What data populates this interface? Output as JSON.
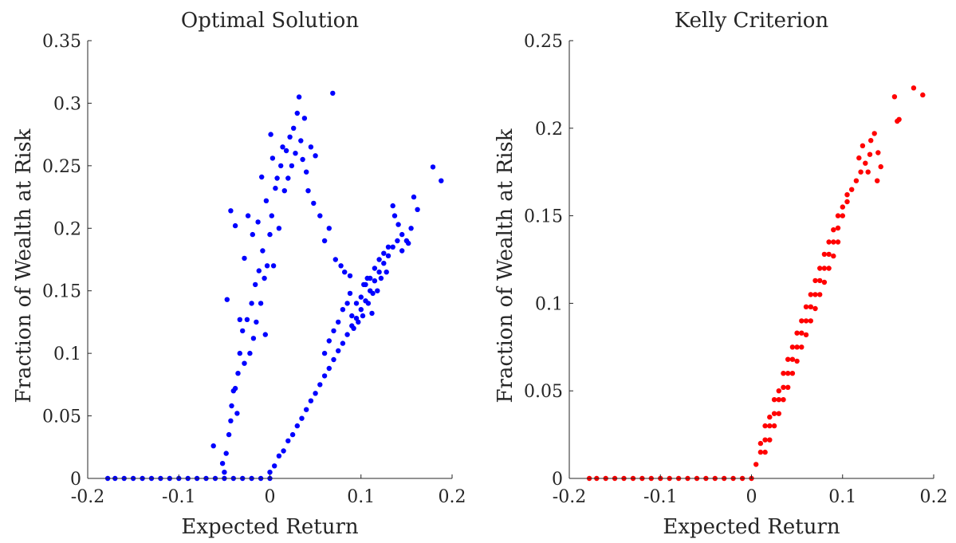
{
  "chart_data": [
    {
      "type": "scatter",
      "title": "Optimal Solution",
      "xlabel": "Expected Return",
      "ylabel": "Fraction of Wealth at Risk",
      "xlim": [
        -0.2,
        0.2
      ],
      "ylim": [
        0,
        0.35
      ],
      "xticks": [
        "-0.2",
        "-0.1",
        "0",
        "0.1",
        "0.2"
      ],
      "xtick_values": [
        -0.2,
        -0.1,
        0,
        0.1,
        0.2
      ],
      "yticks": [
        "0",
        "0.05",
        "0.1",
        "0.15",
        "0.2",
        "0.25",
        "0.3",
        "0.35"
      ],
      "ytick_values": [
        0,
        0.05,
        0.1,
        0.15,
        0.2,
        0.25,
        0.3,
        0.35
      ],
      "grid": false,
      "series": [
        {
          "color": "#0000ff",
          "points": [
            [
              -0.178,
              0
            ],
            [
              -0.17,
              0
            ],
            [
              -0.16,
              0
            ],
            [
              -0.15,
              0
            ],
            [
              -0.14,
              0
            ],
            [
              -0.13,
              0
            ],
            [
              -0.12,
              0
            ],
            [
              -0.11,
              0
            ],
            [
              -0.1,
              0
            ],
            [
              -0.09,
              0
            ],
            [
              -0.08,
              0
            ],
            [
              -0.07,
              0
            ],
            [
              -0.06,
              0
            ],
            [
              -0.05,
              0
            ],
            [
              -0.04,
              0
            ],
            [
              -0.03,
              0
            ],
            [
              -0.02,
              0
            ],
            [
              -0.01,
              0
            ],
            [
              0,
              0
            ],
            [
              -0.062,
              0.026
            ],
            [
              -0.052,
              0.012
            ],
            [
              -0.05,
              0.005
            ],
            [
              -0.048,
              0.02
            ],
            [
              -0.045,
              0.035
            ],
            [
              -0.043,
              0.046
            ],
            [
              -0.042,
              0.058
            ],
            [
              -0.04,
              0.07
            ],
            [
              -0.038,
              0.072
            ],
            [
              -0.036,
              0.052
            ],
            [
              -0.035,
              0.084
            ],
            [
              -0.033,
              0.1
            ],
            [
              -0.03,
              0.118
            ],
            [
              -0.028,
              0.092
            ],
            [
              -0.025,
              0.127
            ],
            [
              -0.022,
              0.1
            ],
            [
              -0.02,
              0.14
            ],
            [
              -0.018,
              0.112
            ],
            [
              -0.016,
              0.155
            ],
            [
              -0.015,
              0.125
            ],
            [
              -0.012,
              0.166
            ],
            [
              -0.01,
              0.14
            ],
            [
              -0.008,
              0.182
            ],
            [
              -0.006,
              0.16
            ],
            [
              -0.005,
              0.115
            ],
            [
              -0.003,
              0.17
            ],
            [
              0,
              0.195
            ],
            [
              0.002,
              0.21
            ],
            [
              0.004,
              0.17
            ],
            [
              0.006,
              0.232
            ],
            [
              0.008,
              0.24
            ],
            [
              0.01,
              0.2
            ],
            [
              0.012,
              0.25
            ],
            [
              0.014,
              0.265
            ],
            [
              0.016,
              0.23
            ],
            [
              0.018,
              0.262
            ],
            [
              0.02,
              0.24
            ],
            [
              0.022,
              0.273
            ],
            [
              0.024,
              0.25
            ],
            [
              0.026,
              0.28
            ],
            [
              0.028,
              0.26
            ],
            [
              0.03,
              0.292
            ],
            [
              0.032,
              0.305
            ],
            [
              0.034,
              0.27
            ],
            [
              0.036,
              0.255
            ],
            [
              0.038,
              0.288
            ],
            [
              0.04,
              0.245
            ],
            [
              0.042,
              0.23
            ],
            [
              0.045,
              0.265
            ],
            [
              0.048,
              0.22
            ],
            [
              0.05,
              0.258
            ],
            [
              0.055,
              0.21
            ],
            [
              0.06,
              0.19
            ],
            [
              0.065,
              0.2
            ],
            [
              0.069,
              0.308
            ],
            [
              0.072,
              0.175
            ],
            [
              0.078,
              0.17
            ],
            [
              0.082,
              0.165
            ],
            [
              0.088,
              0.162
            ],
            [
              -0.047,
              0.143
            ],
            [
              -0.043,
              0.214
            ],
            [
              -0.038,
              0.202
            ],
            [
              -0.033,
              0.127
            ],
            [
              -0.028,
              0.176
            ],
            [
              -0.024,
              0.21
            ],
            [
              -0.019,
              0.195
            ],
            [
              -0.013,
              0.205
            ],
            [
              -0.009,
              0.241
            ],
            [
              -0.004,
              0.222
            ],
            [
              0.001,
              0.275
            ],
            [
              0.003,
              0.256
            ],
            [
              0,
              0.005
            ],
            [
              0.005,
              0.01
            ],
            [
              0.01,
              0.018
            ],
            [
              0.015,
              0.022
            ],
            [
              0.02,
              0.03
            ],
            [
              0.025,
              0.035
            ],
            [
              0.03,
              0.042
            ],
            [
              0.035,
              0.048
            ],
            [
              0.04,
              0.055
            ],
            [
              0.045,
              0.062
            ],
            [
              0.05,
              0.068
            ],
            [
              0.055,
              0.075
            ],
            [
              0.06,
              0.082
            ],
            [
              0.065,
              0.088
            ],
            [
              0.07,
              0.095
            ],
            [
              0.075,
              0.102
            ],
            [
              0.08,
              0.108
            ],
            [
              0.085,
              0.115
            ],
            [
              0.09,
              0.122
            ],
            [
              0.095,
              0.128
            ],
            [
              0.1,
              0.135
            ],
            [
              0.105,
              0.142
            ],
            [
              0.11,
              0.15
            ],
            [
              0.115,
              0.158
            ],
            [
              0.12,
              0.165
            ],
            [
              0.125,
              0.172
            ],
            [
              0.13,
              0.178
            ],
            [
              0.135,
              0.185
            ],
            [
              0.14,
              0.19
            ],
            [
              0.145,
              0.195
            ],
            [
              0.15,
              0.19
            ],
            [
              0.155,
              0.2
            ],
            [
              0.09,
              0.13
            ],
            [
              0.095,
              0.14
            ],
            [
              0.1,
              0.145
            ],
            [
              0.105,
              0.155
            ],
            [
              0.11,
              0.16
            ],
            [
              0.115,
              0.168
            ],
            [
              0.12,
              0.175
            ],
            [
              0.125,
              0.18
            ],
            [
              0.13,
              0.185
            ],
            [
              0.135,
              0.218
            ],
            [
              0.137,
              0.21
            ],
            [
              0.141,
              0.203
            ],
            [
              0.145,
              0.182
            ],
            [
              0.152,
              0.188
            ],
            [
              0.158,
              0.225
            ],
            [
              0.162,
              0.215
            ],
            [
              0.179,
              0.249
            ],
            [
              0.188,
              0.238
            ],
            [
              0.06,
              0.1
            ],
            [
              0.065,
              0.11
            ],
            [
              0.07,
              0.118
            ],
            [
              0.075,
              0.125
            ],
            [
              0.08,
              0.135
            ],
            [
              0.085,
              0.14
            ],
            [
              0.088,
              0.148
            ],
            [
              0.092,
              0.12
            ],
            [
              0.097,
              0.125
            ],
            [
              0.102,
              0.13
            ],
            [
              0.108,
              0.14
            ],
            [
              0.112,
              0.132
            ],
            [
              0.118,
              0.15
            ],
            [
              0.122,
              0.16
            ],
            [
              0.128,
              0.165
            ],
            [
              0.103,
              0.155
            ],
            [
              0.107,
              0.16
            ],
            [
              0.113,
              0.148
            ]
          ]
        }
      ]
    },
    {
      "type": "scatter",
      "title": "Kelly Criterion",
      "xlabel": "Expected Return",
      "ylabel": "Fraction of Wealth at Risk",
      "xlim": [
        -0.2,
        0.2
      ],
      "ylim": [
        0,
        0.25
      ],
      "xticks": [
        "-0.2",
        "-0.1",
        "0",
        "0.1",
        "0.2"
      ],
      "xtick_values": [
        -0.2,
        -0.1,
        0,
        0.1,
        0.2
      ],
      "yticks": [
        "0",
        "0.05",
        "0.1",
        "0.15",
        "0.2",
        "0.25"
      ],
      "ytick_values": [
        0,
        0.05,
        0.1,
        0.15,
        0.2,
        0.25
      ],
      "grid": false,
      "series": [
        {
          "color": "#ff0000",
          "points": [
            [
              -0.178,
              0
            ],
            [
              -0.17,
              0
            ],
            [
              -0.16,
              0
            ],
            [
              -0.15,
              0
            ],
            [
              -0.14,
              0
            ],
            [
              -0.13,
              0
            ],
            [
              -0.12,
              0
            ],
            [
              -0.11,
              0
            ],
            [
              -0.1,
              0
            ],
            [
              -0.09,
              0
            ],
            [
              -0.08,
              0
            ],
            [
              -0.07,
              0
            ],
            [
              -0.06,
              0
            ],
            [
              -0.05,
              0
            ],
            [
              -0.04,
              0
            ],
            [
              -0.03,
              0
            ],
            [
              -0.02,
              0
            ],
            [
              -0.01,
              0
            ],
            [
              0,
              0
            ],
            [
              0.005,
              0.008
            ],
            [
              0.01,
              0.015
            ],
            [
              0.015,
              0.022
            ],
            [
              0.02,
              0.03
            ],
            [
              0.025,
              0.037
            ],
            [
              0.03,
              0.045
            ],
            [
              0.035,
              0.052
            ],
            [
              0.04,
              0.06
            ],
            [
              0.045,
              0.068
            ],
            [
              0.05,
              0.075
            ],
            [
              0.055,
              0.083
            ],
            [
              0.06,
              0.09
            ],
            [
              0.065,
              0.098
            ],
            [
              0.07,
              0.105
            ],
            [
              0.075,
              0.113
            ],
            [
              0.08,
              0.12
            ],
            [
              0.085,
              0.128
            ],
            [
              0.09,
              0.135
            ],
            [
              0.095,
              0.143
            ],
            [
              0.1,
              0.15
            ],
            [
              0.105,
              0.158
            ],
            [
              0.11,
              0.165
            ],
            [
              0.115,
              0.17
            ],
            [
              0.12,
              0.175
            ],
            [
              0.125,
              0.18
            ],
            [
              0.13,
              0.185
            ],
            [
              0.01,
              0.02
            ],
            [
              0.015,
              0.03
            ],
            [
              0.02,
              0.035
            ],
            [
              0.025,
              0.045
            ],
            [
              0.03,
              0.05
            ],
            [
              0.035,
              0.06
            ],
            [
              0.04,
              0.068
            ],
            [
              0.045,
              0.075
            ],
            [
              0.05,
              0.083
            ],
            [
              0.055,
              0.09
            ],
            [
              0.06,
              0.098
            ],
            [
              0.065,
              0.105
            ],
            [
              0.07,
              0.113
            ],
            [
              0.075,
              0.12
            ],
            [
              0.08,
              0.128
            ],
            [
              0.085,
              0.135
            ],
            [
              0.09,
              0.142
            ],
            [
              0.095,
              0.15
            ],
            [
              0.1,
              0.155
            ],
            [
              0.105,
              0.162
            ],
            [
              0.015,
              0.015
            ],
            [
              0.02,
              0.022
            ],
            [
              0.025,
              0.03
            ],
            [
              0.03,
              0.037
            ],
            [
              0.035,
              0.045
            ],
            [
              0.04,
              0.052
            ],
            [
              0.045,
              0.06
            ],
            [
              0.05,
              0.067
            ],
            [
              0.055,
              0.075
            ],
            [
              0.06,
              0.082
            ],
            [
              0.065,
              0.09
            ],
            [
              0.07,
              0.097
            ],
            [
              0.075,
              0.105
            ],
            [
              0.08,
              0.112
            ],
            [
              0.085,
              0.12
            ],
            [
              0.09,
              0.127
            ],
            [
              0.095,
              0.135
            ],
            [
              0.118,
              0.183
            ],
            [
              0.122,
              0.19
            ],
            [
              0.131,
              0.193
            ],
            [
              0.135,
              0.197
            ],
            [
              0.128,
              0.175
            ],
            [
              0.139,
              0.186
            ],
            [
              0.142,
              0.178
            ],
            [
              0.138,
              0.17
            ],
            [
              0.16,
              0.204
            ],
            [
              0.162,
              0.205
            ],
            [
              0.157,
              0.218
            ],
            [
              0.178,
              0.223
            ],
            [
              0.188,
              0.219
            ]
          ]
        }
      ]
    }
  ]
}
